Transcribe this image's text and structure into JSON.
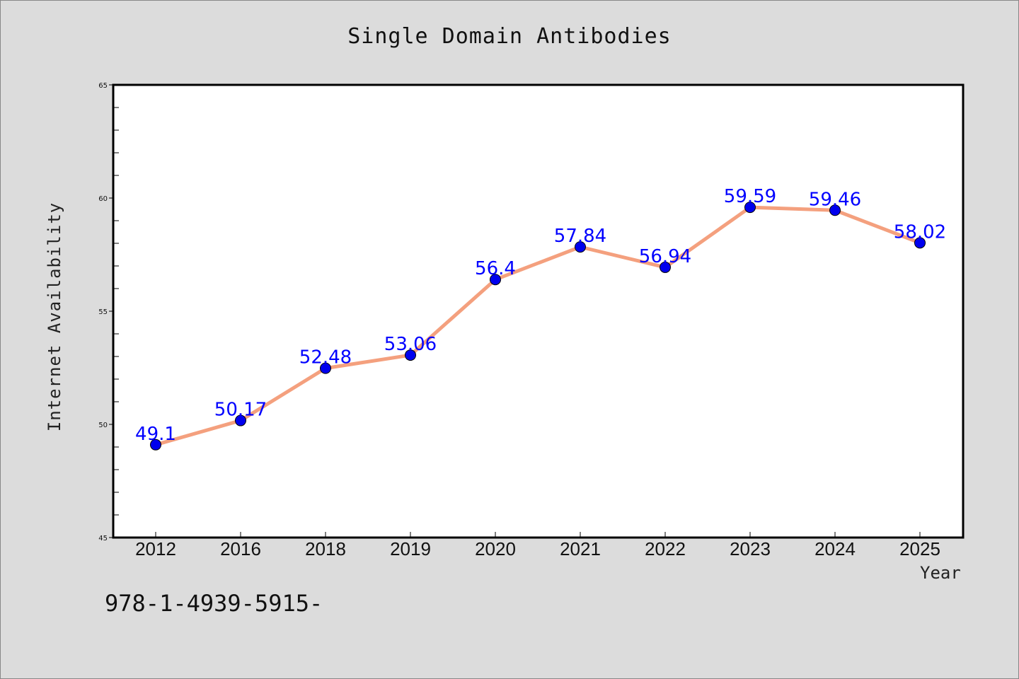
{
  "chart_data": {
    "type": "line",
    "title": "Single Domain Antibodies",
    "xlabel": "Year",
    "ylabel": "Internet Availability",
    "categories": [
      "2012",
      "2016",
      "2018",
      "2019",
      "2020",
      "2021",
      "2022",
      "2023",
      "2024",
      "2025"
    ],
    "series": [
      {
        "values": [
          49.1,
          50.17,
          52.48,
          53.06,
          56.4,
          57.84,
          56.94,
          59.59,
          59.46,
          58.02
        ],
        "labels": [
          "49.1",
          "50.17",
          "52.48",
          "53.06",
          "56.4",
          "57.84",
          "56.94",
          "59.59",
          "59.46",
          "58.02"
        ],
        "line_color": "#f4a07e",
        "marker_color": "#0000ee"
      }
    ],
    "ylim": [
      45,
      65
    ],
    "yticks": [
      45,
      50,
      55,
      60,
      65
    ],
    "ytick_labels": [
      "45",
      "50",
      "55",
      "60",
      "65"
    ],
    "grid": false,
    "label_color": "#0000ff"
  },
  "footer": {
    "text": "978-1-4939-5915-"
  }
}
